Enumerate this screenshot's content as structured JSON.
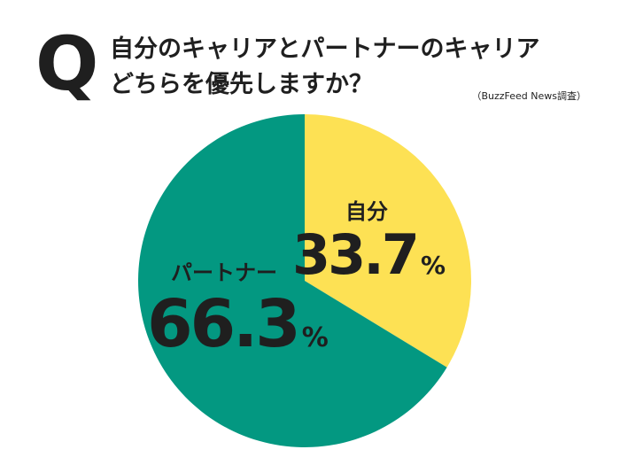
{
  "header": {
    "q_mark": "Q",
    "question_line1": "自分のキャリアとパートナーのキャリア",
    "question_line2": "どちらを優先しますか？",
    "source": "（BuzzFeed News調査）"
  },
  "chart_data": {
    "type": "pie",
    "slices": [
      {
        "label": "自分",
        "value": 33.7,
        "display": "33.7",
        "unit": "%",
        "color": "#fde154"
      },
      {
        "label": "パートナー",
        "value": 66.3,
        "display": "66.3",
        "unit": "%",
        "color": "#039881"
      }
    ],
    "start_angle": "12 o'clock",
    "direction": "clockwise"
  }
}
